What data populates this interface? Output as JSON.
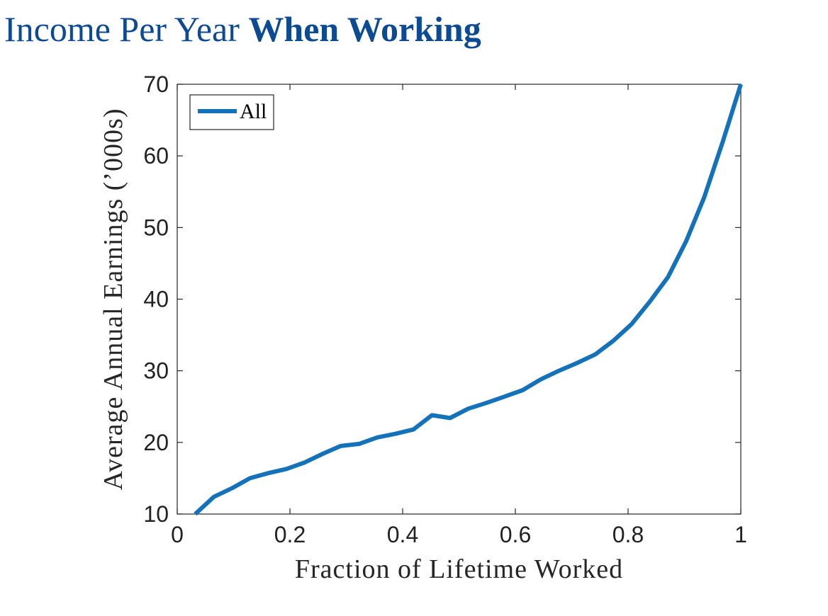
{
  "slide": {
    "title_regular": "Income Per Year",
    "title_bold": "When Working"
  },
  "chart_data": {
    "type": "line",
    "xlabel": "Fraction of Lifetime Worked",
    "ylabel": "Average Annual Earnings (’000s)",
    "xlim": [
      0,
      1
    ],
    "ylim": [
      10,
      70
    ],
    "xticks": [
      0,
      0.2,
      0.4,
      0.6,
      0.8,
      1
    ],
    "xtick_labels": [
      "0",
      "0.2",
      "0.4",
      "0.6",
      "0.8",
      "1"
    ],
    "yticks": [
      10,
      20,
      30,
      40,
      50,
      60,
      70
    ],
    "ytick_labels": [
      "10",
      "20",
      "30",
      "40",
      "50",
      "60",
      "70"
    ],
    "grid": false,
    "legend_position": "top-left",
    "series": [
      {
        "name": "All",
        "color": "#1372b9",
        "x": [
          0.032,
          0.065,
          0.097,
          0.129,
          0.161,
          0.194,
          0.226,
          0.258,
          0.29,
          0.323,
          0.355,
          0.387,
          0.419,
          0.452,
          0.484,
          0.516,
          0.548,
          0.581,
          0.613,
          0.645,
          0.677,
          0.71,
          0.742,
          0.774,
          0.806,
          0.839,
          0.871,
          0.903,
          0.935,
          0.968,
          1.0
        ],
        "y": [
          10.0,
          12.4,
          13.6,
          15.0,
          15.7,
          16.3,
          17.2,
          18.4,
          19.5,
          19.8,
          20.7,
          21.2,
          21.8,
          23.8,
          23.4,
          24.7,
          25.5,
          26.4,
          27.3,
          28.8,
          30.0,
          31.1,
          32.3,
          34.2,
          36.5,
          39.7,
          43.1,
          48.1,
          54.2,
          62.0,
          70.0
        ]
      }
    ]
  }
}
